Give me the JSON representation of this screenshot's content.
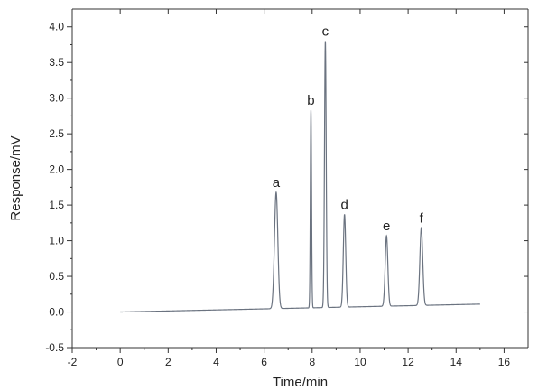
{
  "chart_data": {
    "type": "line",
    "title": "",
    "xlabel": "Time/min",
    "ylabel": "Response/mV",
    "xlim": [
      -2,
      17
    ],
    "ylim": [
      -0.5,
      4.25
    ],
    "grid": false,
    "x_ticks": [
      -2,
      0,
      2,
      4,
      6,
      8,
      10,
      12,
      14,
      16
    ],
    "y_ticks": [
      -0.5,
      0.0,
      0.5,
      1.0,
      1.5,
      2.0,
      2.5,
      3.0,
      3.5,
      4.0
    ],
    "x_tick_labels": [
      "-2",
      "0",
      "2",
      "4",
      "6",
      "8",
      "10",
      "12",
      "14",
      "16"
    ],
    "y_tick_labels": [
      "-0.5",
      "0.0",
      "0.5",
      "1.0",
      "1.5",
      "2.0",
      "2.5",
      "3.0",
      "3.5",
      "4.0"
    ],
    "baseline": {
      "x": [
        0,
        15.0
      ],
      "y": [
        0.0,
        0.11
      ]
    },
    "peaks": [
      {
        "label": "a",
        "time": 6.5,
        "height": 1.68
      },
      {
        "label": "b",
        "time": 7.95,
        "height": 2.83
      },
      {
        "label": "c",
        "time": 8.55,
        "height": 3.8
      },
      {
        "label": "d",
        "time": 9.35,
        "height": 1.37
      },
      {
        "label": "e",
        "time": 11.1,
        "height": 1.07
      },
      {
        "label": "f",
        "time": 12.55,
        "height": 1.18
      }
    ],
    "line_color": "#6b7380"
  }
}
